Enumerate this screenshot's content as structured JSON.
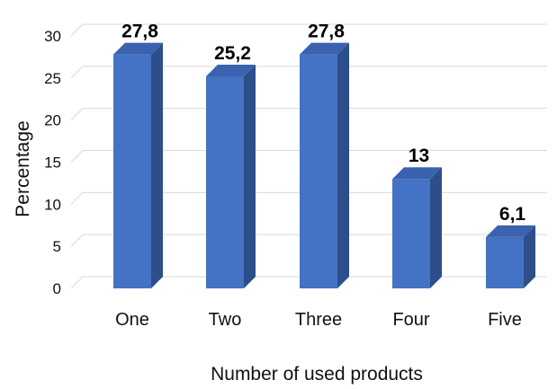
{
  "chart_data": {
    "type": "bar",
    "style": "3d-column",
    "categories": [
      "One",
      "Two",
      "Three",
      "Four",
      "Five"
    ],
    "values": [
      27.8,
      25.2,
      27.8,
      13,
      6.1
    ],
    "data_labels": [
      "27,8",
      "25,2",
      "27,8",
      "13",
      "6,1"
    ],
    "xlabel": "Number of used products",
    "ylabel": "Percentage",
    "ylim": [
      0,
      30
    ],
    "yticks": [
      0,
      5,
      10,
      15,
      20,
      25,
      30
    ],
    "grid": true,
    "colors": {
      "bar_front": "#4472C4",
      "bar_side": "#2C4F8C",
      "bar_top": "#3A62AE",
      "grid": "#D9D9D9"
    }
  }
}
